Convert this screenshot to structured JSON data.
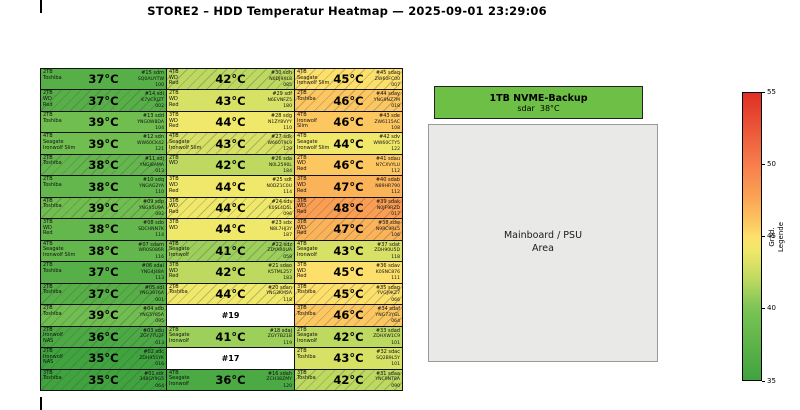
{
  "title": "STORE2 – HDD Temperatur Heatmap — 2025-09-01 23:29:06",
  "nvme_box": {
    "label": "1TB NVME-Backup",
    "detail": "sdar  38°C"
  },
  "mainboard_box": {
    "label": "Mainboard / PSU\nArea"
  },
  "legend": {
    "title": "Grad.\nLegende",
    "ticks": [
      "55",
      "50",
      "45",
      "40",
      "35"
    ],
    "min": 35,
    "max": 55
  },
  "chart_data": {
    "type": "heatmap",
    "title": "STORE2 – HDD Temperatur Heatmap — 2025-09-01 23:29:06",
    "unit": "°C",
    "color_scale": {
      "min": 35,
      "max": 55,
      "low_color": "#3fa33e",
      "mid_color": "#fde06b",
      "high_color": "#e02f23"
    },
    "columns": [
      [
        {
          "num": "#15",
          "dev": "sdm",
          "cap": "2TB",
          "model": "Toshiba",
          "temp": 37,
          "serial": "SQ0AUYTW",
          "hours": "100",
          "hatch": false
        },
        {
          "num": "#14",
          "dev": "sdi",
          "cap": "2TB",
          "model": "WD\nRed",
          "temp": 37,
          "serial": "K7VCRJZT",
          "hours": "002",
          "hatch": true
        },
        {
          "num": "#13",
          "dev": "sdd",
          "cap": "2TB",
          "model": "Toshiba",
          "temp": 39,
          "serial": "YNG0W8DA",
          "hours": "104",
          "hatch": false
        },
        {
          "num": "#12",
          "dev": "sdn",
          "cap": "4TB",
          "model": "Seagate\nIronwolf Slim",
          "temp": 39,
          "serial": "WW60CK42",
          "hours": "121",
          "hatch": false
        },
        {
          "num": "#11",
          "dev": "sdj",
          "cap": "2TB",
          "model": "Toshiba",
          "temp": 38,
          "serial": "YNGJ8AMA",
          "hours": "013",
          "hatch": true
        },
        {
          "num": "#10",
          "dev": "sdq",
          "cap": "2TB",
          "model": "Toshiba",
          "temp": 38,
          "serial": "YNGAG2YA",
          "hours": "110",
          "hatch": false
        },
        {
          "num": "#09",
          "dev": "sdp",
          "cap": "4TB",
          "model": "Toshiba",
          "temp": 39,
          "serial": "YNGX5U9A",
          "hours": "092",
          "hatch": true
        },
        {
          "num": "#08",
          "dev": "sdo",
          "cap": "3TB",
          "model": "WD\nRed",
          "temp": 38,
          "serial": "SDCHNN7K",
          "hours": "114",
          "hatch": false
        },
        {
          "num": "#07",
          "dev": "sdam",
          "cap": "4TB",
          "model": "Seagate\nIronwolf Slim",
          "temp": 38,
          "serial": "WR0S086R",
          "hours": "116",
          "hatch": false
        },
        {
          "num": "#06",
          "dev": "sdal",
          "cap": "2TB",
          "model": "Toshiba",
          "temp": 37,
          "serial": "YNG4J48A",
          "hours": "113",
          "hatch": false
        },
        {
          "num": "#05",
          "dev": "sdl",
          "cap": "2TB",
          "model": "Toshiba",
          "temp": 37,
          "serial": "YNG3976A",
          "hours": "001",
          "hatch": true
        },
        {
          "num": "#04",
          "dev": "sdb",
          "cap": "2TB",
          "model": "Toshiba",
          "temp": 39,
          "serial": "YNG5Y85A",
          "hours": "095",
          "hatch": true
        },
        {
          "num": "#03",
          "dev": "sdu",
          "cap": "2TB",
          "model": "Ironwolf\nNAS",
          "temp": 36,
          "serial": "ZGY77U2F",
          "hours": "013",
          "hatch": true
        },
        {
          "num": "#02",
          "dev": "sdc",
          "cap": "2TB",
          "model": "Ironwolf\nNAS",
          "temp": 35,
          "serial": "ZDH955YK",
          "hours": "016",
          "hatch": true
        },
        {
          "num": "#01",
          "dev": "sdr",
          "cap": "3TB",
          "model": "Toshiba",
          "temp": 35,
          "serial": "34BGY9G5",
          "hours": "064",
          "hatch": true
        }
      ],
      [
        {
          "num": "#30",
          "dev": "sdh",
          "cap": "4TB",
          "model": "WD\nRed",
          "temp": 42,
          "serial": "N0DJ9XL8",
          "hours": "085",
          "hatch": true
        },
        {
          "num": "#29",
          "dev": "sdf",
          "cap": "2TB",
          "model": "WD\nRed",
          "temp": 43,
          "serial": "N6EVNFZ5",
          "hours": "180",
          "hatch": false
        },
        {
          "num": "#28",
          "dev": "sdg",
          "cap": "3TB",
          "model": "WD\nRed",
          "temp": 44,
          "serial": "N1ZY8VYY",
          "hours": "110",
          "hatch": false
        },
        {
          "num": "#27",
          "dev": "sdk",
          "cap": "4TB",
          "model": "Seagate\nIronwolf Slim",
          "temp": 43,
          "serial": "W660T9L9",
          "hours": "129",
          "hatch": true
        },
        {
          "num": "#26",
          "dev": "sda",
          "cap": "2TB",
          "model": "WD",
          "temp": 42,
          "serial": "N0L2590L",
          "hours": "184",
          "hatch": false
        },
        {
          "num": "#25",
          "dev": "sdt",
          "cap": "3TB",
          "model": "WD\nRed",
          "temp": 44,
          "serial": "N0DZ1C0U",
          "hours": "114",
          "hatch": false
        },
        {
          "num": "#24",
          "dev": "sds",
          "cap": "3TB",
          "model": "WD\nRed",
          "temp": 44,
          "serial": "K0SL4D5L",
          "hours": "096",
          "hatch": true
        },
        {
          "num": "#23",
          "dev": "sdx",
          "cap": "3TB",
          "model": "WD",
          "temp": 44,
          "serial": "N8L7HJ3Y",
          "hours": "187",
          "hatch": false
        },
        {
          "num": "#22",
          "dev": "sdz",
          "cap": "4TB",
          "model": "Seagate\nIronwolf",
          "temp": 41,
          "serial": "ZDYAR0UA",
          "hours": "058",
          "hatch": true
        },
        {
          "num": "#21",
          "dev": "sdao",
          "cap": "3TB",
          "model": "WD\nRed",
          "temp": 42,
          "serial": "K5TML257",
          "hours": "183",
          "hatch": false
        },
        {
          "num": "#20",
          "dev": "sdan",
          "cap": "2TB",
          "model": "Toshiba",
          "temp": 44,
          "serial": "YNG3KM5A",
          "hours": "118",
          "hatch": true
        },
        {
          "num": "#19",
          "missing": true
        },
        {
          "num": "#18",
          "dev": "sdaj",
          "cap": "2TB",
          "model": "Seagate\nIronwolf",
          "temp": 41,
          "serial": "ZGY7B21B",
          "hours": "119",
          "hatch": false
        },
        {
          "num": "#17",
          "missing": true
        },
        {
          "num": "#16",
          "dev": "sdah",
          "cap": "4TB",
          "model": "Seagate\nIronwolf",
          "temp": 36,
          "serial": "ZCH38ZMY",
          "hours": "120",
          "hatch": false
        }
      ],
      [
        {
          "num": "#45",
          "dev": "sdaq",
          "cap": "4TB",
          "model": "Seagate\nIronwolf Slim",
          "temp": 45,
          "serial": "ZW60FC00",
          "hours": "007",
          "hatch": true
        },
        {
          "num": "#44",
          "dev": "sday",
          "cap": "2TB",
          "model": "Toshiba",
          "temp": 46,
          "serial": "YNG9NZ7M",
          "hours": "018",
          "hatch": true
        },
        {
          "num": "#43",
          "dev": "sde",
          "cap": "4TB",
          "model": "Ironwolf\nSlim",
          "temp": 46,
          "serial": "ZW6115AC",
          "hours": "108",
          "hatch": false
        },
        {
          "num": "#42",
          "dev": "sdv",
          "cap": "4TB",
          "model": "Seagate\nIronwolf Slim",
          "temp": 44,
          "serial": "WW60CTY5",
          "hours": "122",
          "hatch": false
        },
        {
          "num": "#41",
          "dev": "sdau",
          "cap": "2TB",
          "model": "WD\nRed",
          "temp": 46,
          "serial": "N7CXVYLU",
          "hours": "112",
          "hatch": false
        },
        {
          "num": "#40",
          "dev": "sdab",
          "cap": "3TB",
          "model": "WD\nRed",
          "temp": 47,
          "serial": "N89HR790",
          "hours": "112",
          "hatch": false
        },
        {
          "num": "#39",
          "dev": "sdak",
          "cap": "3TB",
          "model": "WD\nRed",
          "temp": 48,
          "serial": "N0JF9RZD",
          "hours": "017",
          "hatch": true
        },
        {
          "num": "#38",
          "dev": "sdw",
          "cap": "3TB",
          "model": "WD\nRed",
          "temp": 47,
          "serial": "N9RC9RL5",
          "hours": "106",
          "hatch": true
        },
        {
          "num": "#37",
          "dev": "sdat",
          "cap": "4TB",
          "model": "Seagate\nIronwolf",
          "temp": 43,
          "serial": "ZDH90U5D",
          "hours": "118",
          "hatch": false
        },
        {
          "num": "#36",
          "dev": "sdav",
          "cap": "3TB",
          "model": "WD\nRed",
          "temp": 45,
          "serial": "K0SNC876",
          "hours": "111",
          "hatch": false
        },
        {
          "num": "#35",
          "dev": "sdag",
          "cap": "3TB",
          "model": "Toshiba",
          "temp": 45,
          "serial": "YVGJ9KZ7",
          "hours": "066",
          "hatch": true
        },
        {
          "num": "#34",
          "dev": "sdaf",
          "cap": "3TB",
          "model": "Toshiba",
          "temp": 46,
          "serial": "YNG73YGL",
          "hours": "064",
          "hatch": true
        },
        {
          "num": "#33",
          "dev": "sdad",
          "cap": "2TB",
          "model": "Seagate\nIronwolf",
          "temp": 42,
          "serial": "ZDHXW1C9",
          "hours": "101",
          "hatch": false
        },
        {
          "num": "#32",
          "dev": "sdac",
          "cap": "2TB",
          "model": "Toshiba",
          "temp": 43,
          "serial": "SQ2B9L5Y",
          "hours": "101",
          "hatch": false
        },
        {
          "num": "#31",
          "dev": "sdaa",
          "cap": "3TB",
          "model": "Toshiba",
          "temp": 42,
          "serial": "YNC9NT8A",
          "hours": "090",
          "hatch": true
        }
      ]
    ]
  }
}
